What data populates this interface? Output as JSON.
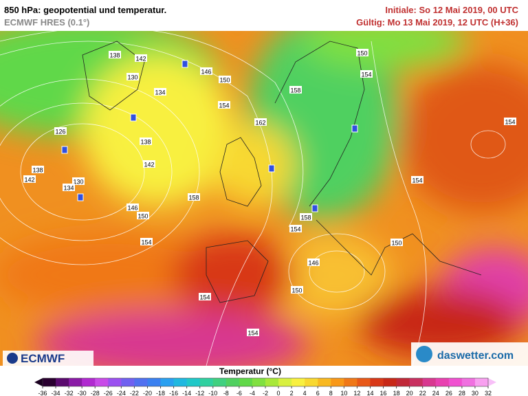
{
  "header": {
    "title": "850 hPa: geopotential und temperatur.",
    "model": "ECMWF HRES (0.1°)",
    "init": "Initiale: So 12 Mai 2019, 00 UTC",
    "valid": "Gültig: Mo 13 Mai 2019, 12 UTC (H+36)"
  },
  "contour_labels": [
    138,
    142,
    130,
    134,
    146,
    150,
    154,
    162,
    158,
    150,
    154,
    154,
    126,
    138,
    142,
    138,
    142,
    130,
    134,
    158,
    146,
    150,
    154,
    154,
    158,
    154,
    150,
    146,
    150,
    154,
    154
  ],
  "logos": {
    "left": "ECMWF",
    "right": "daswetter.com"
  },
  "colorbar": {
    "label": "Temperatur (°C)",
    "ticks": [
      -36,
      -34,
      -32,
      -30,
      -28,
      -26,
      -24,
      -22,
      -20,
      -18,
      -16,
      -14,
      -12,
      -10,
      -8,
      -6,
      -4,
      -2,
      0,
      2,
      4,
      6,
      8,
      10,
      12,
      14,
      16,
      18,
      20,
      22,
      24,
      26,
      28,
      30,
      32
    ],
    "colors": [
      "#2a0030",
      "#5a0a6e",
      "#8a1aa6",
      "#b02ad0",
      "#c84ae8",
      "#9a50f0",
      "#7060f0",
      "#5070f0",
      "#3a80f0",
      "#2aa0f0",
      "#20b8e0",
      "#20c8c8",
      "#30d0a0",
      "#40d080",
      "#50d060",
      "#60d848",
      "#80e040",
      "#a8e838",
      "#d8f040",
      "#f8f040",
      "#f8d830",
      "#f8b820",
      "#f89818",
      "#f07818",
      "#e85818",
      "#d83818",
      "#c82818",
      "#c02838",
      "#c83060",
      "#d83890",
      "#e840b0",
      "#f050d0",
      "#f070e0",
      "#f8a0f0"
    ]
  }
}
